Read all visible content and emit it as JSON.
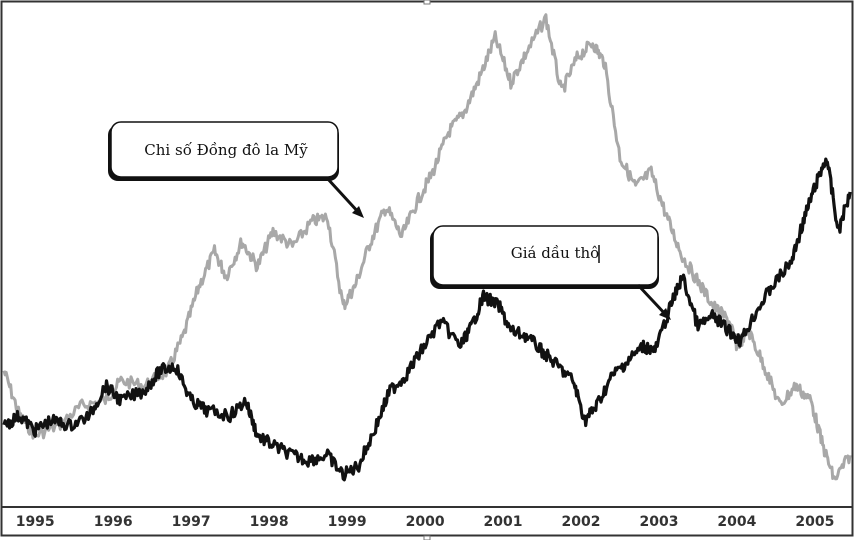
{
  "chart_data": {
    "type": "line",
    "title": "",
    "xlabel": "",
    "ylabel": "",
    "x_ticks": [
      "1995",
      "1996",
      "1997",
      "1998",
      "1999",
      "2000",
      "2001",
      "2002",
      "2003",
      "2004",
      "2005"
    ],
    "x_range": [
      1994.6,
      2005.45
    ],
    "grid": false,
    "legend": "none",
    "series": [
      {
        "name": "Chỉ số Đồng đô la Mỹ",
        "color": "#a8a8a8",
        "points": [
          [
            1994.6,
            0.73
          ],
          [
            1994.8,
            0.82
          ],
          [
            1995.0,
            0.86
          ],
          [
            1995.3,
            0.84
          ],
          [
            1995.6,
            0.8
          ],
          [
            1995.9,
            0.79
          ],
          [
            1996.1,
            0.75
          ],
          [
            1996.4,
            0.76
          ],
          [
            1996.7,
            0.73
          ],
          [
            1996.9,
            0.66
          ],
          [
            1997.1,
            0.56
          ],
          [
            1997.3,
            0.49
          ],
          [
            1997.45,
            0.54
          ],
          [
            1997.65,
            0.47
          ],
          [
            1997.85,
            0.52
          ],
          [
            1998.05,
            0.45
          ],
          [
            1998.3,
            0.48
          ],
          [
            1998.55,
            0.43
          ],
          [
            1998.75,
            0.42
          ],
          [
            1998.95,
            0.6
          ],
          [
            1999.1,
            0.56
          ],
          [
            1999.3,
            0.47
          ],
          [
            1999.5,
            0.4
          ],
          [
            1999.7,
            0.46
          ],
          [
            1999.9,
            0.39
          ],
          [
            2000.1,
            0.33
          ],
          [
            2000.3,
            0.25
          ],
          [
            2000.5,
            0.21
          ],
          [
            2000.7,
            0.14
          ],
          [
            2000.9,
            0.06
          ],
          [
            2001.1,
            0.15
          ],
          [
            2001.3,
            0.09
          ],
          [
            2001.55,
            0.02
          ],
          [
            2001.75,
            0.17
          ],
          [
            2001.95,
            0.1
          ],
          [
            2002.15,
            0.07
          ],
          [
            2002.3,
            0.11
          ],
          [
            2002.5,
            0.3
          ],
          [
            2002.7,
            0.36
          ],
          [
            2002.9,
            0.33
          ],
          [
            2003.1,
            0.42
          ],
          [
            2003.3,
            0.5
          ],
          [
            2003.5,
            0.55
          ],
          [
            2003.7,
            0.6
          ],
          [
            2003.9,
            0.63
          ],
          [
            2004.0,
            0.68
          ],
          [
            2004.15,
            0.65
          ],
          [
            2004.35,
            0.72
          ],
          [
            2004.55,
            0.8
          ],
          [
            2004.75,
            0.76
          ],
          [
            2004.95,
            0.79
          ],
          [
            2005.1,
            0.88
          ],
          [
            2005.25,
            0.95
          ],
          [
            2005.45,
            0.9
          ]
        ]
      },
      {
        "name": "Giá dầu thô",
        "color": "#111111",
        "points": [
          [
            1994.6,
            0.84
          ],
          [
            1994.8,
            0.82
          ],
          [
            1995.0,
            0.85
          ],
          [
            1995.2,
            0.83
          ],
          [
            1995.45,
            0.84
          ],
          [
            1995.7,
            0.82
          ],
          [
            1995.9,
            0.76
          ],
          [
            1996.1,
            0.79
          ],
          [
            1996.4,
            0.77
          ],
          [
            1996.6,
            0.73
          ],
          [
            1996.8,
            0.72
          ],
          [
            1997.0,
            0.79
          ],
          [
            1997.2,
            0.81
          ],
          [
            1997.5,
            0.82
          ],
          [
            1997.7,
            0.79
          ],
          [
            1997.85,
            0.86
          ],
          [
            1998.05,
            0.88
          ],
          [
            1998.3,
            0.9
          ],
          [
            1998.5,
            0.91
          ],
          [
            1998.75,
            0.9
          ],
          [
            1998.95,
            0.94
          ],
          [
            1999.15,
            0.92
          ],
          [
            1999.35,
            0.85
          ],
          [
            1999.55,
            0.77
          ],
          [
            1999.75,
            0.74
          ],
          [
            1999.95,
            0.69
          ],
          [
            2000.2,
            0.63
          ],
          [
            2000.45,
            0.68
          ],
          [
            2000.6,
            0.64
          ],
          [
            2000.75,
            0.58
          ],
          [
            2000.95,
            0.6
          ],
          [
            2001.1,
            0.65
          ],
          [
            2001.3,
            0.66
          ],
          [
            2001.5,
            0.69
          ],
          [
            2001.7,
            0.72
          ],
          [
            2001.9,
            0.75
          ],
          [
            2002.05,
            0.83
          ],
          [
            2002.2,
            0.8
          ],
          [
            2002.4,
            0.74
          ],
          [
            2002.6,
            0.71
          ],
          [
            2002.8,
            0.68
          ],
          [
            2002.95,
            0.69
          ],
          [
            2003.15,
            0.6
          ],
          [
            2003.3,
            0.54
          ],
          [
            2003.5,
            0.64
          ],
          [
            2003.7,
            0.62
          ],
          [
            2003.9,
            0.65
          ],
          [
            2004.05,
            0.67
          ],
          [
            2004.25,
            0.61
          ],
          [
            2004.45,
            0.56
          ],
          [
            2004.7,
            0.51
          ],
          [
            2004.85,
            0.43
          ],
          [
            2005.0,
            0.36
          ],
          [
            2005.15,
            0.3
          ],
          [
            2005.3,
            0.45
          ],
          [
            2005.45,
            0.37
          ]
        ]
      }
    ],
    "annotations": [
      {
        "text": "Chi số Đồng đô la Mỹ",
        "target_series": "Chỉ số Đồng đô la Mỹ"
      },
      {
        "text": "Giá dầu thô",
        "target_series": "Giá dầu thô"
      }
    ]
  }
}
